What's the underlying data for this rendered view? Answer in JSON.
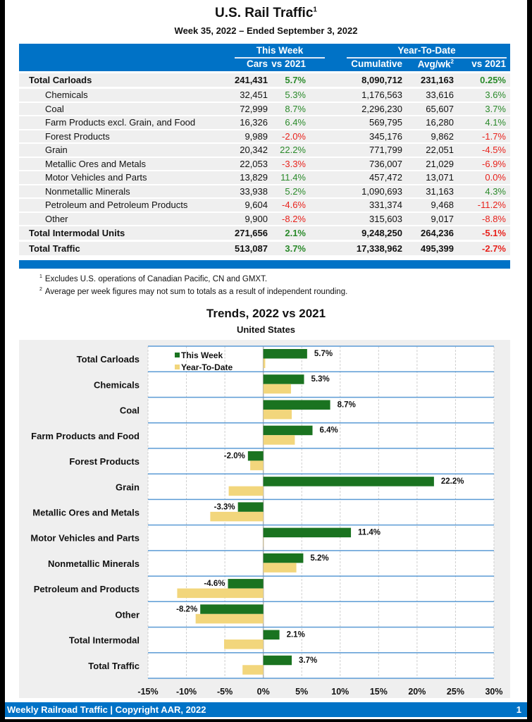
{
  "header": {
    "title": "U.S. Rail Traffic",
    "title_footnote": "1",
    "subtitle": "Week 35, 2022 – Ended September 3, 2022"
  },
  "table": {
    "group_this_week": "This Week",
    "group_ytd": "Year-To-Date",
    "col_cars": "Cars",
    "col_vs2021": "vs 2021",
    "col_cumulative": "Cumulative",
    "col_avgwk": "Avg/wk",
    "col_avgwk_footnote": "2",
    "col_ytd_vs2021": "vs 2021",
    "rows": [
      {
        "label": "Total Carloads",
        "total": true,
        "cars": "241,431",
        "vs2021": "5.7%",
        "cumulative": "8,090,712",
        "avg_wk": "231,163",
        "ytd_vs2021": "0.25%",
        "vs_sign": "pos",
        "ytd_sign": "pos"
      },
      {
        "label": "Chemicals",
        "total": false,
        "cars": "32,451",
        "vs2021": "5.3%",
        "cumulative": "1,176,563",
        "avg_wk": "33,616",
        "ytd_vs2021": "3.6%",
        "vs_sign": "pos",
        "ytd_sign": "pos"
      },
      {
        "label": "Coal",
        "total": false,
        "cars": "72,999",
        "vs2021": "8.7%",
        "cumulative": "2,296,230",
        "avg_wk": "65,607",
        "ytd_vs2021": "3.7%",
        "vs_sign": "pos",
        "ytd_sign": "pos"
      },
      {
        "label": "Farm Products excl. Grain, and Food",
        "total": false,
        "cars": "16,326",
        "vs2021": "6.4%",
        "cumulative": "569,795",
        "avg_wk": "16,280",
        "ytd_vs2021": "4.1%",
        "vs_sign": "pos",
        "ytd_sign": "pos"
      },
      {
        "label": "Forest Products",
        "total": false,
        "cars": "9,989",
        "vs2021": "-2.0%",
        "cumulative": "345,176",
        "avg_wk": "9,862",
        "ytd_vs2021": "-1.7%",
        "vs_sign": "neg",
        "ytd_sign": "neg"
      },
      {
        "label": "Grain",
        "total": false,
        "cars": "20,342",
        "vs2021": "22.2%",
        "cumulative": "771,799",
        "avg_wk": "22,051",
        "ytd_vs2021": "-4.5%",
        "vs_sign": "pos",
        "ytd_sign": "neg"
      },
      {
        "label": "Metallic Ores and Metals",
        "total": false,
        "cars": "22,053",
        "vs2021": "-3.3%",
        "cumulative": "736,007",
        "avg_wk": "21,029",
        "ytd_vs2021": "-6.9%",
        "vs_sign": "neg",
        "ytd_sign": "neg"
      },
      {
        "label": "Motor Vehicles and Parts",
        "total": false,
        "cars": "13,829",
        "vs2021": "11.4%",
        "cumulative": "457,472",
        "avg_wk": "13,071",
        "ytd_vs2021": "0.0%",
        "vs_sign": "pos",
        "ytd_sign": "neg"
      },
      {
        "label": "Nonmetallic Minerals",
        "total": false,
        "cars": "33,938",
        "vs2021": "5.2%",
        "cumulative": "1,090,693",
        "avg_wk": "31,163",
        "ytd_vs2021": "4.3%",
        "vs_sign": "pos",
        "ytd_sign": "pos"
      },
      {
        "label": "Petroleum and Petroleum Products",
        "total": false,
        "cars": "9,604",
        "vs2021": "-4.6%",
        "cumulative": "331,374",
        "avg_wk": "9,468",
        "ytd_vs2021": "-11.2%",
        "vs_sign": "neg",
        "ytd_sign": "neg"
      },
      {
        "label": "Other",
        "total": false,
        "cars": "9,900",
        "vs2021": "-8.2%",
        "cumulative": "315,603",
        "avg_wk": "9,017",
        "ytd_vs2021": "-8.8%",
        "vs_sign": "neg",
        "ytd_sign": "neg"
      },
      {
        "label": "Total Intermodal Units",
        "total": true,
        "cars": "271,656",
        "vs2021": "2.1%",
        "cumulative": "9,248,250",
        "avg_wk": "264,236",
        "ytd_vs2021": "-5.1%",
        "vs_sign": "pos",
        "ytd_sign": "neg"
      },
      {
        "label": "Total Traffic",
        "total": true,
        "cars": "513,087",
        "vs2021": "3.7%",
        "cumulative": "17,338,962",
        "avg_wk": "495,399",
        "ytd_vs2021": "-2.7%",
        "vs_sign": "pos",
        "ytd_sign": "neg"
      }
    ]
  },
  "footnotes": [
    {
      "mark": "1",
      "text": "Excludes U.S. operations of Canadian Pacific, CN and GMXT."
    },
    {
      "mark": "2",
      "text": "Average per week figures may not sum to totals as a result of independent rounding."
    }
  ],
  "colors": {
    "brand_blue": "#0072c6",
    "positive": "#2a8a2a",
    "negative": "#e8221c",
    "this_week_bar": "#1a7320",
    "ytd_bar": "#f2d67c",
    "row_separator": "#5b9bd5"
  },
  "chart_data": {
    "type": "bar",
    "orientation": "horizontal",
    "title": "Trends, 2022 vs 2021",
    "subtitle": "United States",
    "xlabel": "",
    "ylabel": "",
    "xlim": [
      -15,
      30
    ],
    "x_ticks": [
      -15,
      -10,
      -5,
      0,
      5,
      10,
      15,
      20,
      25,
      30
    ],
    "x_tick_labels": [
      "-15%",
      "-10%",
      "-5%",
      "0%",
      "5%",
      "10%",
      "15%",
      "20%",
      "25%",
      "30%"
    ],
    "grid": true,
    "legend_position": "top-left",
    "categories": [
      "Total Carloads",
      "Chemicals",
      "Coal",
      "Farm Products and Food",
      "Forest Products",
      "Grain",
      "Metallic Ores and Metals",
      "Motor Vehicles and Parts",
      "Nonmetallic Minerals",
      "Petroleum and Products",
      "Other",
      "Total Intermodal",
      "Total Traffic"
    ],
    "series": [
      {
        "name": "This Week",
        "values": [
          5.7,
          5.3,
          8.7,
          6.4,
          -2.0,
          22.2,
          -3.3,
          11.4,
          5.2,
          -4.6,
          -8.2,
          2.1,
          3.7
        ],
        "data_labels": [
          "5.7%",
          "5.3%",
          "8.7%",
          "6.4%",
          "-2.0%",
          "22.2%",
          "-3.3%",
          "11.4%",
          "5.2%",
          "-4.6%",
          "-8.2%",
          "2.1%",
          "3.7%"
        ]
      },
      {
        "name": "Year-To-Date",
        "values": [
          0.25,
          3.6,
          3.7,
          4.1,
          -1.7,
          -4.5,
          -6.9,
          0.0,
          4.3,
          -11.2,
          -8.8,
          -5.1,
          -2.7
        ]
      }
    ]
  },
  "footer": {
    "text": "Weekly Railroad Traffic | Copyright AAR, 2022",
    "page_number": "1"
  }
}
